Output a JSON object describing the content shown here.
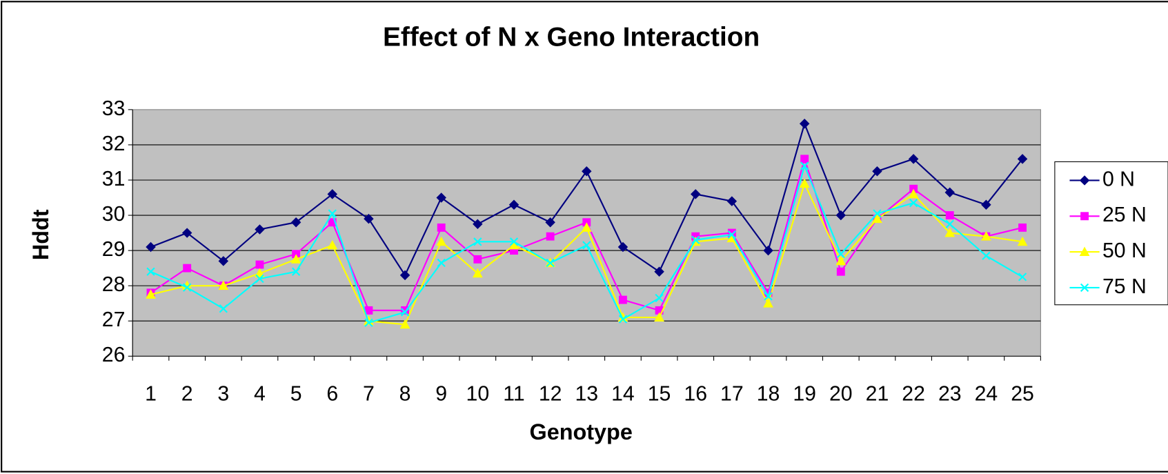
{
  "chart_data": {
    "type": "line",
    "title": "Effect of N x Geno Interaction",
    "x_label": "Genotype",
    "y_label": "Hddt",
    "categories": [
      "1",
      "2",
      "3",
      "4",
      "5",
      "6",
      "7",
      "8",
      "9",
      "10",
      "11",
      "12",
      "13",
      "14",
      "15",
      "16",
      "17",
      "18",
      "19",
      "20",
      "21",
      "22",
      "23",
      "24",
      "25"
    ],
    "ylim": [
      26,
      33
    ],
    "yticks": [
      26,
      27,
      28,
      29,
      30,
      31,
      32,
      33
    ],
    "grid": true,
    "legend": "right",
    "series": [
      {
        "name": "0 N",
        "color": "#000080",
        "marker": "diamond",
        "values": [
          29.1,
          29.5,
          28.7,
          29.6,
          29.8,
          30.6,
          29.9,
          28.3,
          30.5,
          29.75,
          30.3,
          29.8,
          31.25,
          29.1,
          28.4,
          30.6,
          30.4,
          29.0,
          32.6,
          30.0,
          31.25,
          31.6,
          30.65,
          30.3,
          31.6
        ]
      },
      {
        "name": "25 N",
        "color": "#ff00ff",
        "marker": "square",
        "values": [
          27.8,
          28.5,
          28.0,
          28.6,
          28.9,
          29.8,
          27.3,
          27.3,
          29.65,
          28.75,
          29.0,
          29.4,
          29.8,
          27.6,
          27.3,
          29.4,
          29.5,
          27.8,
          31.6,
          28.4,
          29.9,
          30.75,
          30.0,
          29.4,
          29.65
        ]
      },
      {
        "name": "50 N",
        "color": "#ffff00",
        "marker": "triangle",
        "values": [
          27.75,
          28.0,
          28.0,
          28.35,
          28.75,
          29.15,
          27.0,
          26.9,
          29.25,
          28.35,
          29.15,
          28.65,
          29.65,
          27.1,
          27.1,
          29.25,
          29.35,
          27.5,
          30.9,
          28.7,
          29.9,
          30.6,
          29.5,
          29.4,
          29.25
        ]
      },
      {
        "name": "75 N",
        "color": "#00ffff",
        "marker": "x",
        "values": [
          28.4,
          27.95,
          27.35,
          28.2,
          28.4,
          30.05,
          26.95,
          27.25,
          28.65,
          29.25,
          29.25,
          28.65,
          29.15,
          27.05,
          27.65,
          29.3,
          29.45,
          27.7,
          31.4,
          28.9,
          30.05,
          30.35,
          29.75,
          28.85,
          28.25
        ]
      }
    ]
  }
}
